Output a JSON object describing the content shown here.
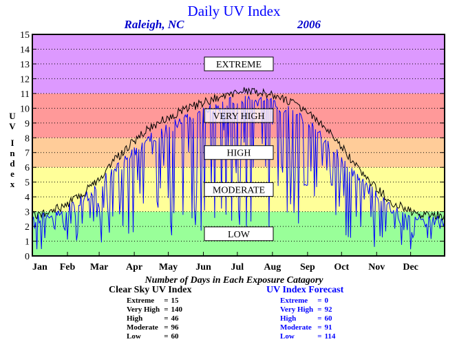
{
  "chart_data": {
    "type": "line",
    "title": "Daily UV Index",
    "location": "Raleigh, NC",
    "year": "2006",
    "ylabel": "UV Index",
    "ylim": [
      0,
      15
    ],
    "yticks": [
      0,
      1,
      2,
      3,
      4,
      5,
      6,
      7,
      8,
      9,
      10,
      11,
      12,
      13,
      14,
      15
    ],
    "x_categories": [
      "Jan",
      "Feb",
      "Mar",
      "Apr",
      "May",
      "Jun",
      "Jul",
      "Aug",
      "Sep",
      "Oct",
      "Nov",
      "Dec"
    ],
    "grid": "horizontal dotted",
    "bands": [
      {
        "label": "LOW",
        "from": 0,
        "to": 3,
        "color": "#99ff99"
      },
      {
        "label": "MODERATE",
        "from": 3,
        "to": 6,
        "color": "#ffff99"
      },
      {
        "label": "HIGH",
        "from": 6,
        "to": 8,
        "color": "#ffcc99"
      },
      {
        "label": "VERY HIGH",
        "from": 8,
        "to": 11,
        "color": "#ff9999"
      },
      {
        "label": "EXTREME",
        "from": 11,
        "to": 15,
        "color": "#dd99ff"
      }
    ],
    "series": [
      {
        "name": "Clear Sky UV Index",
        "color": "#000000",
        "x": [
          "Jan 1",
          "Jan 15",
          "Feb 1",
          "Feb 15",
          "Mar 1",
          "Mar 15",
          "Apr 1",
          "Apr 15",
          "May 1",
          "May 15",
          "Jun 1",
          "Jun 15",
          "Jul 1",
          "Jul 15",
          "Aug 1",
          "Aug 15",
          "Sep 1",
          "Sep 15",
          "Oct 1",
          "Oct 15",
          "Nov 1",
          "Nov 15",
          "Dec 1",
          "Dec 15",
          "Dec 31"
        ],
        "values": [
          2.7,
          3.0,
          3.5,
          4.2,
          5.3,
          6.5,
          7.8,
          8.7,
          9.4,
          9.9,
          10.4,
          10.8,
          11.1,
          11.2,
          10.9,
          10.5,
          9.8,
          8.8,
          7.4,
          6.0,
          4.6,
          3.6,
          3.0,
          2.8,
          2.7
        ]
      },
      {
        "name": "UV Index Forecast",
        "color": "#0000ff",
        "x": [
          "Jan 1",
          "Jan 15",
          "Feb 1",
          "Feb 15",
          "Mar 1",
          "Mar 15",
          "Apr 1",
          "Apr 15",
          "May 1",
          "May 15",
          "Jun 1",
          "Jun 15",
          "Jul 1",
          "Jul 15",
          "Aug 1",
          "Aug 15",
          "Sep 1",
          "Sep 15",
          "Oct 1",
          "Oct 15",
          "Nov 1",
          "Nov 15",
          "Dec 1",
          "Dec 15",
          "Dec 31"
        ],
        "values": [
          2.5,
          2.7,
          3.2,
          3.8,
          4.8,
          5.8,
          7.0,
          7.9,
          8.6,
          9.2,
          9.7,
          10.2,
          10.5,
          10.6,
          10.3,
          9.8,
          9.0,
          7.8,
          6.6,
          5.3,
          4.0,
          3.1,
          2.7,
          2.5,
          2.4
        ]
      }
    ]
  },
  "counts": {
    "title": "Number of Days in Each Exposure Catagory",
    "clear_sky": {
      "title": "Clear Sky UV Index",
      "rows": [
        {
          "label": "Extreme",
          "value": "15"
        },
        {
          "label": "Very High",
          "value": "140"
        },
        {
          "label": "High",
          "value": "46"
        },
        {
          "label": "Moderate",
          "value": "96"
        },
        {
          "label": "Low",
          "value": "60"
        }
      ]
    },
    "forecast": {
      "title": "UV Index Forecast",
      "rows": [
        {
          "label": "Extreme",
          "value": "0"
        },
        {
          "label": "Very High",
          "value": "92"
        },
        {
          "label": "High",
          "value": "60"
        },
        {
          "label": "Moderate",
          "value": "91"
        },
        {
          "label": "Low",
          "value": "114"
        }
      ]
    }
  }
}
